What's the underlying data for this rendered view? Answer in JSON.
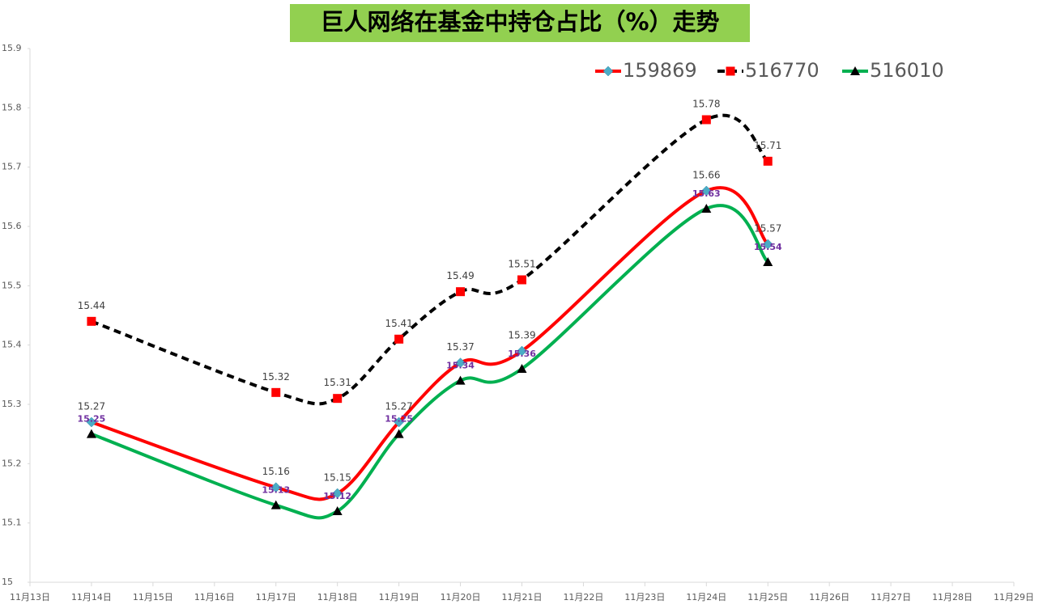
{
  "chart_data": {
    "type": "line",
    "title": "巨人网络在基金中持仓占比（%）走势",
    "title_background": "#92d050",
    "x": [
      14,
      17,
      18,
      19,
      20,
      21,
      24,
      25
    ],
    "xlim": [
      13,
      29
    ],
    "xticks": [
      {
        "value": 13,
        "label": "11月13日"
      },
      {
        "value": 14,
        "label": "11月14日"
      },
      {
        "value": 15,
        "label": "11月15日"
      },
      {
        "value": 16,
        "label": "11月16日"
      },
      {
        "value": 17,
        "label": "11月17日"
      },
      {
        "value": 18,
        "label": "11月18日"
      },
      {
        "value": 19,
        "label": "11月19日"
      },
      {
        "value": 20,
        "label": "11月20日"
      },
      {
        "value": 21,
        "label": "11月21日"
      },
      {
        "value": 22,
        "label": "11月22日"
      },
      {
        "value": 23,
        "label": "11月23日"
      },
      {
        "value": 24,
        "label": "11月24日"
      },
      {
        "value": 25,
        "label": "11月25日"
      },
      {
        "value": 26,
        "label": "11月26日"
      },
      {
        "value": 27,
        "label": "11月27日"
      },
      {
        "value": 28,
        "label": "11月28日"
      },
      {
        "value": 29,
        "label": "11月29日"
      }
    ],
    "ylim": [
      15,
      15.9
    ],
    "yticks": [
      15,
      15.1,
      15.2,
      15.3,
      15.4,
      15.5,
      15.6,
      15.7,
      15.8,
      15.9
    ],
    "grid": false,
    "legend": "top-right",
    "series": [
      {
        "name": "159869",
        "color": "#ff0000",
        "marker": "diamond",
        "marker_color": "#4bacc6",
        "dashed": false,
        "label_color": "#404040",
        "values": [
          15.27,
          15.16,
          15.15,
          15.27,
          15.37,
          15.39,
          15.66,
          15.57
        ]
      },
      {
        "name": "516770",
        "color": "#000000",
        "marker": "square",
        "marker_color": "#ff0000",
        "dashed": true,
        "label_color": "#404040",
        "values": [
          15.44,
          15.32,
          15.31,
          15.41,
          15.49,
          15.51,
          15.78,
          15.71
        ]
      },
      {
        "name": "516010",
        "color": "#00b050",
        "marker": "triangle",
        "marker_color": "#000000",
        "dashed": false,
        "label_color": "#7030a0",
        "values": [
          15.25,
          15.13,
          15.12,
          15.25,
          15.34,
          15.36,
          15.63,
          15.54
        ]
      }
    ]
  }
}
